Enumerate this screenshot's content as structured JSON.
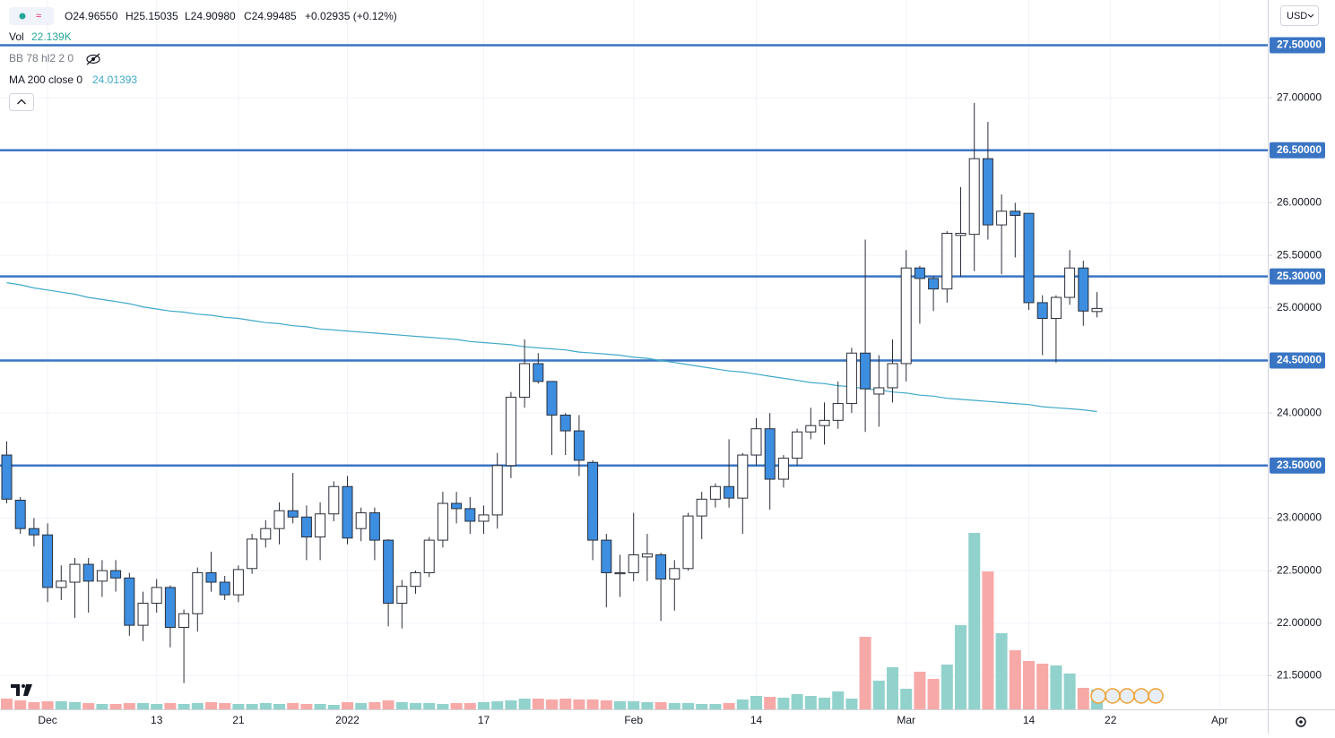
{
  "chart_data": {
    "type": "candlestick",
    "legend": {
      "open": "O24.96550",
      "high": "H25.15035",
      "low": "L24.90980",
      "close": "C24.99485",
      "change": "+0.02935 (+0.12%)"
    },
    "indicators": {
      "vol_name": "Vol",
      "vol_value": "22.139K",
      "bb": "BB 78 hl2 2 0",
      "ma_name": "MA 200 close 0",
      "ma_value": "24.01393"
    },
    "currency": "USD",
    "categories": [
      null,
      null,
      null,
      "Dec",
      null,
      null,
      null,
      null,
      null,
      null,
      null,
      "13",
      null,
      null,
      null,
      null,
      null,
      "21",
      null,
      null,
      null,
      null,
      null,
      null,
      null,
      "2022",
      null,
      null,
      null,
      null,
      null,
      null,
      null,
      null,
      null,
      "17",
      null,
      null,
      null,
      null,
      null,
      null,
      null,
      null,
      null,
      null,
      "Feb",
      null,
      null,
      null,
      null,
      null,
      null,
      null,
      null,
      "14",
      null,
      null,
      null,
      null,
      null,
      null,
      null,
      null,
      null,
      null,
      "Mar",
      null,
      null,
      null,
      null,
      null,
      null,
      null,
      null,
      "14",
      null,
      null,
      null,
      null,
      null,
      "22",
      null,
      null,
      null,
      null,
      null,
      null,
      null,
      "Apr",
      null,
      null
    ],
    "open": [
      23.6,
      23.17,
      22.9,
      22.84,
      22.34,
      22.39,
      22.56,
      22.4,
      22.5,
      22.43,
      21.98,
      22.19,
      22.34,
      21.96,
      22.09,
      22.48,
      22.39,
      22.27,
      22.52,
      22.8,
      22.9,
      23.07,
      23.01,
      22.82,
      23.04,
      23.3,
      22.9,
      23.05,
      22.79,
      22.19,
      22.35,
      22.48,
      22.79,
      23.14,
      23.09,
      22.97,
      23.03,
      23.5,
      24.15,
      24.47,
      24.3,
      23.98,
      23.83,
      23.53,
      22.79,
      22.47,
      22.48,
      22.63,
      22.65,
      22.42,
      22.52,
      23.02,
      23.18,
      23.3,
      23.19,
      23.6,
      23.85,
      23.37,
      23.57,
      23.82,
      23.88,
      23.93,
      24.09,
      24.57,
      24.18,
      24.24,
      24.47,
      25.38,
      25.28,
      25.18,
      25.69,
      25.7,
      26.42,
      25.79,
      25.92,
      25.9,
      25.05,
      24.9,
      25.1,
      25.38,
      24.9655,
      null,
      null,
      null,
      null,
      null,
      null,
      null,
      null,
      null,
      null,
      null
    ],
    "high": [
      23.73,
      23.2,
      23.0,
      22.95,
      22.55,
      22.62,
      22.62,
      22.6,
      22.6,
      22.48,
      22.3,
      22.42,
      22.36,
      22.13,
      22.53,
      22.68,
      22.45,
      22.55,
      22.85,
      22.98,
      23.15,
      23.43,
      23.12,
      23.15,
      23.35,
      23.4,
      23.1,
      23.1,
      22.8,
      22.41,
      22.5,
      22.82,
      23.25,
      23.25,
      23.2,
      23.12,
      23.62,
      24.2,
      24.7,
      24.57,
      24.3,
      24.0,
      23.98,
      23.55,
      22.85,
      22.65,
      23.05,
      22.85,
      22.67,
      22.6,
      23.05,
      23.25,
      23.33,
      23.75,
      23.62,
      23.95,
      24.0,
      23.6,
      23.85,
      24.05,
      24.1,
      24.3,
      24.62,
      25.65,
      24.55,
      24.7,
      25.55,
      25.4,
      25.3,
      25.73,
      26.15,
      26.95,
      26.77,
      26.08,
      26.0,
      25.9,
      25.12,
      25.12,
      25.55,
      25.45,
      25.15035,
      null,
      null,
      null,
      null,
      null,
      null,
      null,
      null,
      null,
      null,
      null
    ],
    "low": [
      23.14,
      22.85,
      22.73,
      22.2,
      22.22,
      22.05,
      22.1,
      22.25,
      22.3,
      21.88,
      21.83,
      22.1,
      21.77,
      21.43,
      21.92,
      22.3,
      22.22,
      22.2,
      22.47,
      22.72,
      22.75,
      22.95,
      22.6,
      22.6,
      22.97,
      22.75,
      22.78,
      22.6,
      21.97,
      21.95,
      22.28,
      22.44,
      22.72,
      22.95,
      22.85,
      22.85,
      22.9,
      23.38,
      24.05,
      24.28,
      23.6,
      23.6,
      23.4,
      22.6,
      22.15,
      22.25,
      22.4,
      22.4,
      22.02,
      22.12,
      22.5,
      22.8,
      23.1,
      23.1,
      22.85,
      23.5,
      23.08,
      23.29,
      23.5,
      23.75,
      23.7,
      23.85,
      24.0,
      23.82,
      23.87,
      24.1,
      24.3,
      24.85,
      24.97,
      25.05,
      25.3,
      25.35,
      25.65,
      25.32,
      25.48,
      24.98,
      24.55,
      24.48,
      25.03,
      24.83,
      24.9098,
      null,
      null,
      null,
      null,
      null,
      null,
      null,
      null,
      null,
      null,
      null
    ],
    "close": [
      23.18,
      22.9,
      22.84,
      22.34,
      22.4,
      22.56,
      22.4,
      22.5,
      22.43,
      21.98,
      22.19,
      22.34,
      21.96,
      22.09,
      22.48,
      22.39,
      22.27,
      22.51,
      22.8,
      22.9,
      23.07,
      23.01,
      22.82,
      23.04,
      23.3,
      22.81,
      23.05,
      22.79,
      22.19,
      22.35,
      22.48,
      22.79,
      23.14,
      23.09,
      22.97,
      23.03,
      23.5,
      24.15,
      24.47,
      24.3,
      23.98,
      23.83,
      23.55,
      22.79,
      22.48,
      22.48,
      22.65,
      22.66,
      22.42,
      22.52,
      23.02,
      23.18,
      23.3,
      23.19,
      23.6,
      23.85,
      23.37,
      23.57,
      23.82,
      23.88,
      23.93,
      24.09,
      24.57,
      24.23,
      24.24,
      24.47,
      25.38,
      25.28,
      25.18,
      25.71,
      25.71,
      26.42,
      25.79,
      25.92,
      25.88,
      25.05,
      24.9,
      25.1,
      25.38,
      24.97,
      24.99485,
      null,
      null,
      null,
      null,
      null,
      null,
      null,
      null,
      null,
      null,
      null
    ],
    "volume": [
      12,
      10,
      8,
      9,
      9,
      8,
      7,
      6,
      6,
      7,
      7,
      6,
      7,
      6,
      7,
      8,
      7,
      6,
      6,
      7,
      6,
      7,
      6,
      6,
      5,
      8,
      7,
      8,
      10,
      8,
      7,
      7,
      6,
      7,
      7,
      8,
      9,
      10,
      12,
      12,
      11,
      12,
      11,
      11,
      10,
      9,
      9,
      8,
      8,
      7,
      7,
      6,
      6,
      7,
      11,
      15,
      14,
      13,
      17,
      15,
      13,
      20,
      12,
      81,
      32,
      47,
      23,
      42,
      34,
      50,
      94,
      197,
      154,
      85,
      66,
      54,
      51,
      49,
      40,
      24,
      22.139,
      null,
      null,
      null,
      null,
      null,
      null,
      null,
      null,
      null,
      null,
      null
    ],
    "ma": [
      25.24,
      25.22,
      25.19,
      25.17,
      25.15,
      25.13,
      25.1,
      25.08,
      25.06,
      25.04,
      25.01,
      24.99,
      24.97,
      24.96,
      24.94,
      24.93,
      24.91,
      24.9,
      24.88,
      24.86,
      24.85,
      24.83,
      24.82,
      24.8,
      24.79,
      24.78,
      24.77,
      24.76,
      24.75,
      24.74,
      24.73,
      24.72,
      24.71,
      24.7,
      24.68,
      24.67,
      24.66,
      24.65,
      24.63,
      24.62,
      24.61,
      24.6,
      24.58,
      24.57,
      24.56,
      24.55,
      24.53,
      24.52,
      24.5,
      24.48,
      24.46,
      24.44,
      24.42,
      24.4,
      24.39,
      24.37,
      24.35,
      24.33,
      24.31,
      24.29,
      24.28,
      24.26,
      24.25,
      24.23,
      24.22,
      24.2,
      24.19,
      24.17,
      24.16,
      24.14,
      24.13,
      24.12,
      24.11,
      24.1,
      24.09,
      24.08,
      24.06,
      24.05,
      24.04,
      24.03,
      24.01393,
      null,
      null,
      null,
      null,
      null,
      null,
      null,
      null,
      null,
      null,
      null
    ],
    "ylim": [
      21.18,
      27.93
    ],
    "yticks": [
      {
        "value": 21.5,
        "label": "21.50000"
      },
      {
        "value": 22,
        "label": "22.00000"
      },
      {
        "value": 22.5,
        "label": "22.50000"
      },
      {
        "value": 23,
        "label": "23.00000"
      },
      {
        "value": 23.5,
        "label": "23.50000"
      },
      {
        "value": 24,
        "label": "24.00000"
      },
      {
        "value": 24.5,
        "label": "24.50000"
      },
      {
        "value": 25,
        "label": "25.00000"
      },
      {
        "value": 25.5,
        "label": "25.50000"
      },
      {
        "value": 26,
        "label": "26.00000"
      },
      {
        "value": 26.5,
        "label": "26.50000"
      },
      {
        "value": 27,
        "label": "27.00000"
      }
    ],
    "hlines": [
      {
        "value": 27.5,
        "label": "27.50000"
      },
      {
        "value": 26.5,
        "label": "26.50000"
      },
      {
        "value": 25.3,
        "label": "25.30000"
      },
      {
        "value": 24.5,
        "label": "24.50000"
      },
      {
        "value": 23.5,
        "label": "23.50000"
      }
    ],
    "colors": {
      "up": "#ffffff",
      "down": "#3d8ee0",
      "border": "#2a2e39",
      "vol_up": "#92d2cc",
      "vol_down": "#f7a9a7",
      "hline": "#3a75c4",
      "ma": "#3fa9c9"
    },
    "grid": true
  }
}
